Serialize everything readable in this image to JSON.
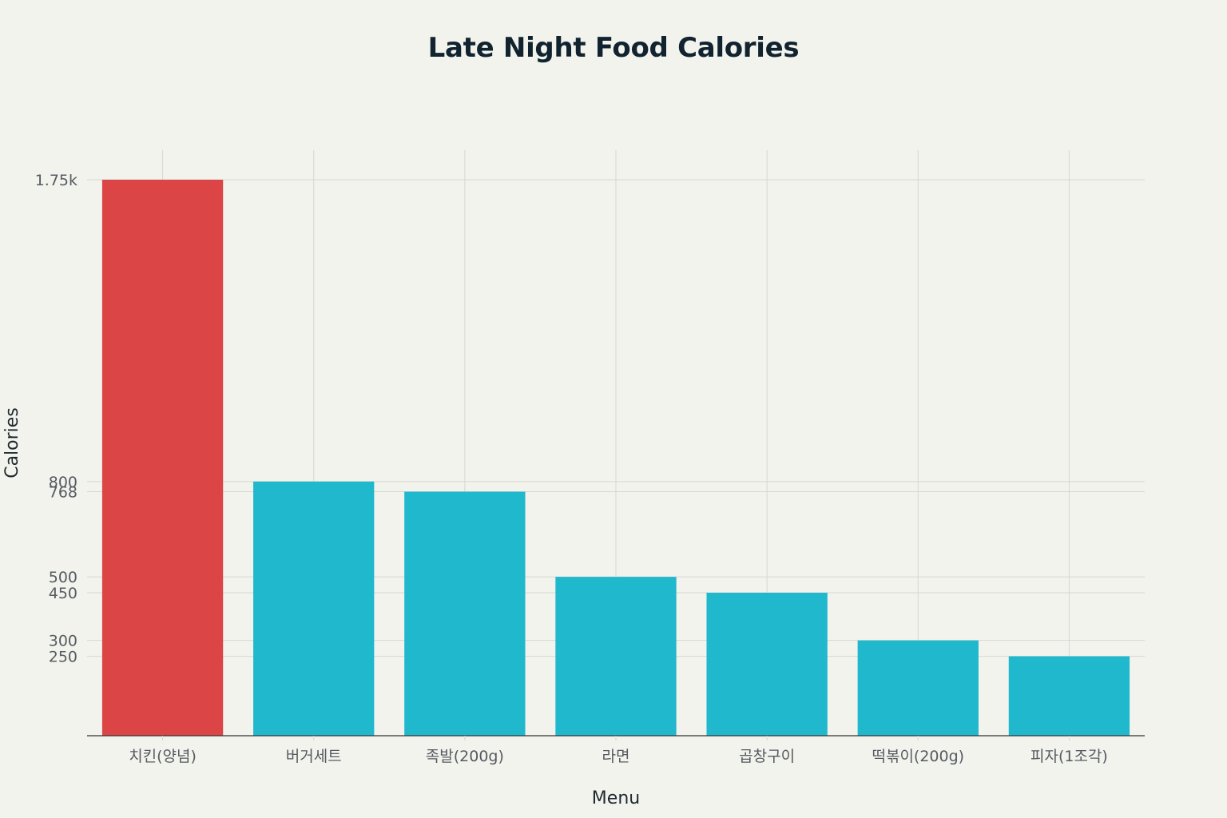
{
  "chart_data": {
    "type": "bar",
    "title": "Late Night Food Calories",
    "xlabel": "Menu",
    "ylabel": "Calories",
    "categories": [
      "치킨(양념)",
      "버거세트",
      "족발(200g)",
      "라면",
      "곱창구이",
      "떡볶이(200g)",
      "피자(1조각)"
    ],
    "values": [
      1750,
      800,
      768,
      500,
      450,
      300,
      250
    ],
    "ylim": [
      0,
      1843
    ],
    "y_ticks": [
      250,
      300,
      450,
      500,
      768,
      800,
      1750
    ],
    "y_tick_labels": [
      "250",
      "300",
      "450",
      "500",
      "768",
      "800",
      "1.75k"
    ],
    "bar_colors": [
      "#db4545",
      "#1fb8cd",
      "#1fb8cd",
      "#1fb8cd",
      "#1fb8cd",
      "#1fb8cd",
      "#1fb8cd"
    ],
    "grid": true,
    "legend": "none"
  },
  "colors": {
    "background": "#f3f3ee",
    "highlight": "#db4545",
    "primary": "#1fb8cd",
    "grid": "#d6d6d2",
    "axis": "#333333"
  }
}
